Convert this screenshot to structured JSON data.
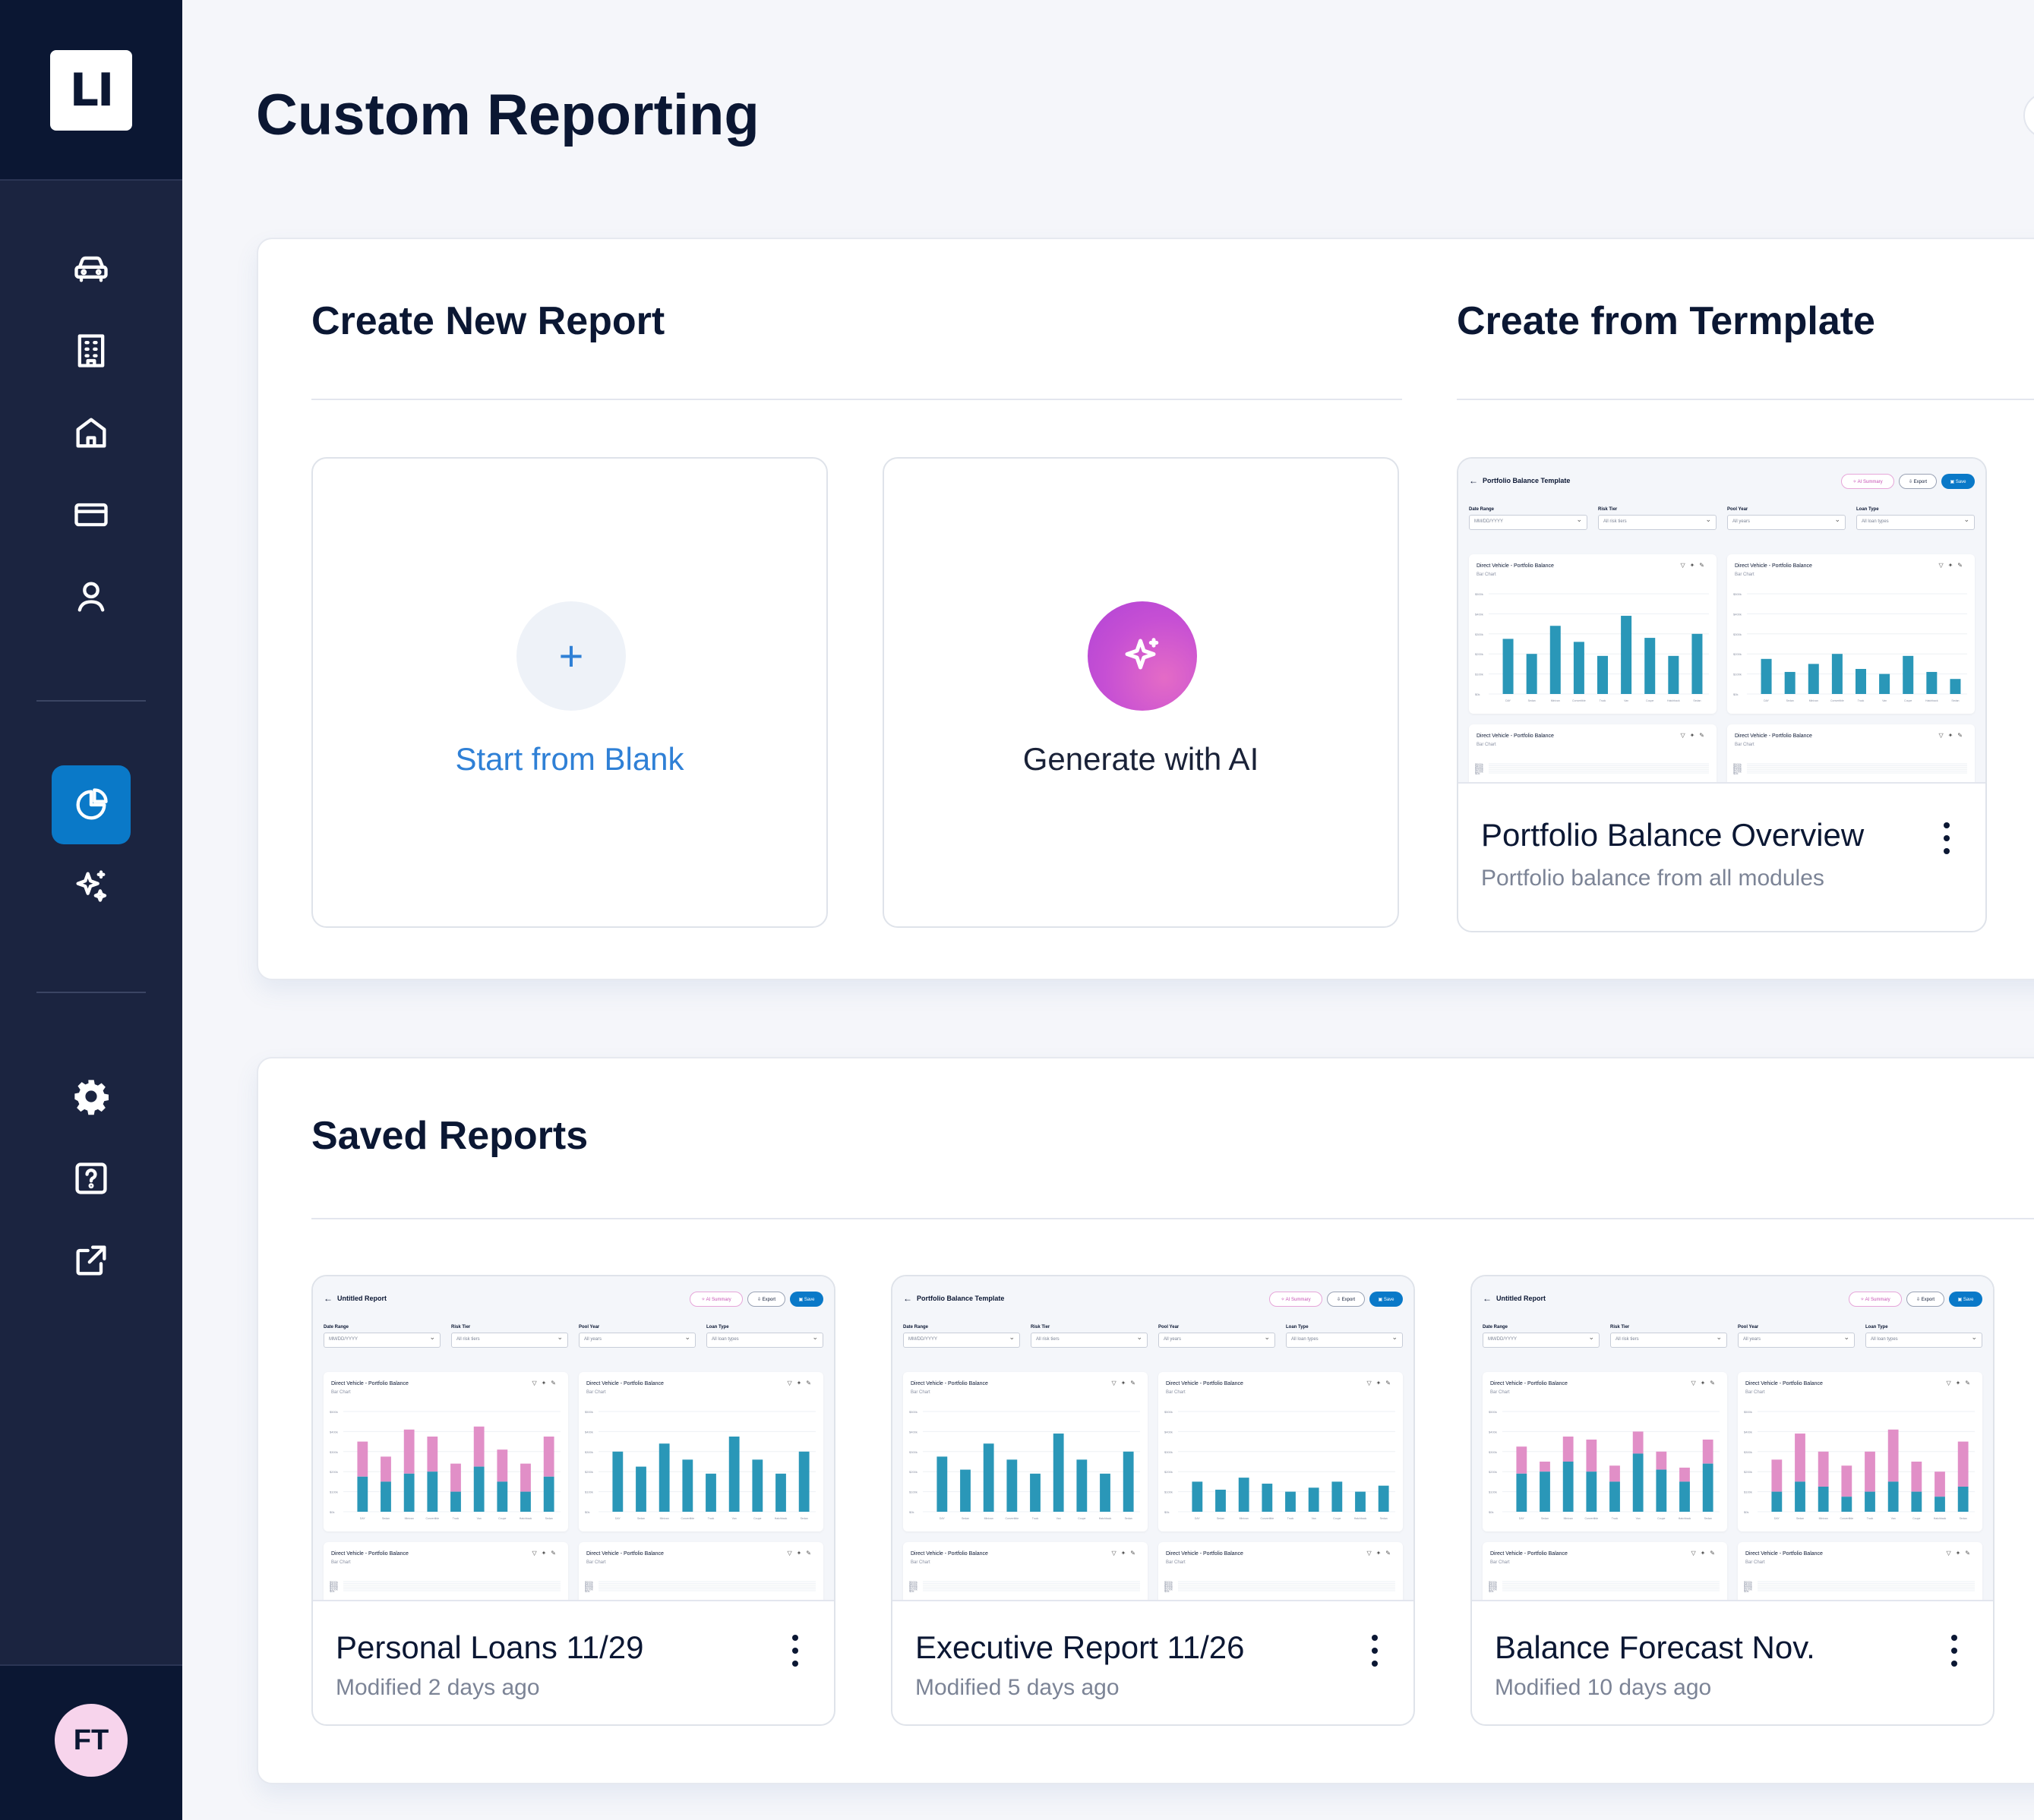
{
  "app": {
    "logo": "LI",
    "user_initials": "FT"
  },
  "nav": {
    "items": [
      {
        "icon": "car-icon",
        "name": "nav-auto-loans"
      },
      {
        "icon": "building-icon",
        "name": "nav-commercial"
      },
      {
        "icon": "home-icon",
        "name": "nav-mortgage"
      },
      {
        "icon": "credit-card-icon",
        "name": "nav-cards"
      },
      {
        "icon": "user-icon",
        "name": "nav-personal"
      },
      {
        "icon": "pie-chart-icon",
        "name": "nav-reporting",
        "active": true
      },
      {
        "icon": "sparkle-icon",
        "name": "nav-ai"
      },
      {
        "icon": "gear-icon",
        "name": "nav-settings"
      },
      {
        "icon": "help-icon",
        "name": "nav-help"
      },
      {
        "icon": "external-link-icon",
        "name": "nav-external"
      }
    ]
  },
  "page": {
    "title": "Custom Reporting"
  },
  "create": {
    "title": "Create New Report",
    "blank_label": "Start from Blank",
    "ai_label": "Generate with AI"
  },
  "template": {
    "title": "Create from Termplate",
    "card": {
      "name": "Portfolio Balance Overview",
      "subtitle": "Portfolio balance from all modules"
    }
  },
  "saved": {
    "title": "Saved Reports",
    "reports": [
      {
        "name": "Personal Loans 11/29",
        "modified": "Modified 2 days ago"
      },
      {
        "name": "Executive Report 11/26",
        "modified": "Modified 5 days ago"
      },
      {
        "name": "Balance Forecast Nov.",
        "modified": "Modified 10 days ago"
      }
    ]
  },
  "thumbnails": {
    "template": {
      "title": "Portfolio Balance Template",
      "ai_btn": "✧ AI Summary",
      "export_btn": "⇩ Export",
      "save_btn": "▣ Save",
      "filters": [
        {
          "label": "Date Range",
          "value": "MM/DD/YYYY"
        },
        {
          "label": "Risk Tier",
          "value": "All risk tiers"
        },
        {
          "label": "Pool Year",
          "value": "All years"
        },
        {
          "label": "Loan Type",
          "value": "All loan types"
        }
      ],
      "chart_title": "Direct Vehicle - Portfolio Balance",
      "chart_sub": "Bar Chart",
      "charts": [
        {
          "stacked": false,
          "values": [
            0.55,
            0.4,
            0.68,
            0.52,
            0.38,
            0.78,
            0.56,
            0.38,
            0.6
          ]
        },
        {
          "stacked": false,
          "values": [
            0.35,
            0.22,
            0.3,
            0.4,
            0.25,
            0.2,
            0.38,
            0.22,
            0.15
          ]
        }
      ]
    },
    "saved": [
      {
        "title": "Untitled Report",
        "charts": [
          {
            "stacked": true,
            "values": [
              0.7,
              0.55,
              0.82,
              0.75,
              0.48,
              0.85,
              0.62,
              0.48,
              0.75
            ],
            "lower": [
              0.35,
              0.3,
              0.38,
              0.4,
              0.2,
              0.45,
              0.3,
              0.2,
              0.35
            ]
          },
          {
            "stacked": false,
            "values": [
              0.6,
              0.45,
              0.68,
              0.52,
              0.38,
              0.75,
              0.52,
              0.38,
              0.6
            ]
          }
        ]
      },
      {
        "title": "Portfolio Balance Template",
        "charts": [
          {
            "stacked": false,
            "values": [
              0.55,
              0.42,
              0.68,
              0.52,
              0.38,
              0.78,
              0.52,
              0.38,
              0.6
            ]
          },
          {
            "stacked": false,
            "values": [
              0.3,
              0.22,
              0.34,
              0.28,
              0.2,
              0.24,
              0.3,
              0.2,
              0.26
            ]
          }
        ]
      },
      {
        "title": "Untitled Report",
        "charts": [
          {
            "stacked": true,
            "values": [
              0.65,
              0.5,
              0.75,
              0.72,
              0.46,
              0.8,
              0.6,
              0.44,
              0.72
            ],
            "lower": [
              0.38,
              0.4,
              0.5,
              0.4,
              0.3,
              0.58,
              0.42,
              0.3,
              0.48
            ]
          },
          {
            "stacked": true,
            "values": [
              0.52,
              0.78,
              0.6,
              0.46,
              0.6,
              0.82,
              0.5,
              0.4,
              0.7
            ],
            "lower": [
              0.2,
              0.3,
              0.25,
              0.15,
              0.2,
              0.3,
              0.2,
              0.15,
              0.25
            ]
          }
        ]
      }
    ],
    "y_ticks": [
      "$500k",
      "$400k",
      "$300k",
      "$200k",
      "$100k",
      "$0k"
    ],
    "x_ticks": [
      "DAY",
      "Sedan",
      "Minivan",
      "Convertible",
      "Truck",
      "Van",
      "Coupe",
      "Hatchback",
      "Sedan"
    ]
  },
  "colors": {
    "bar": "#2a97b8",
    "bar_stack": "#e18fc7",
    "accent": "#0a79c8"
  }
}
